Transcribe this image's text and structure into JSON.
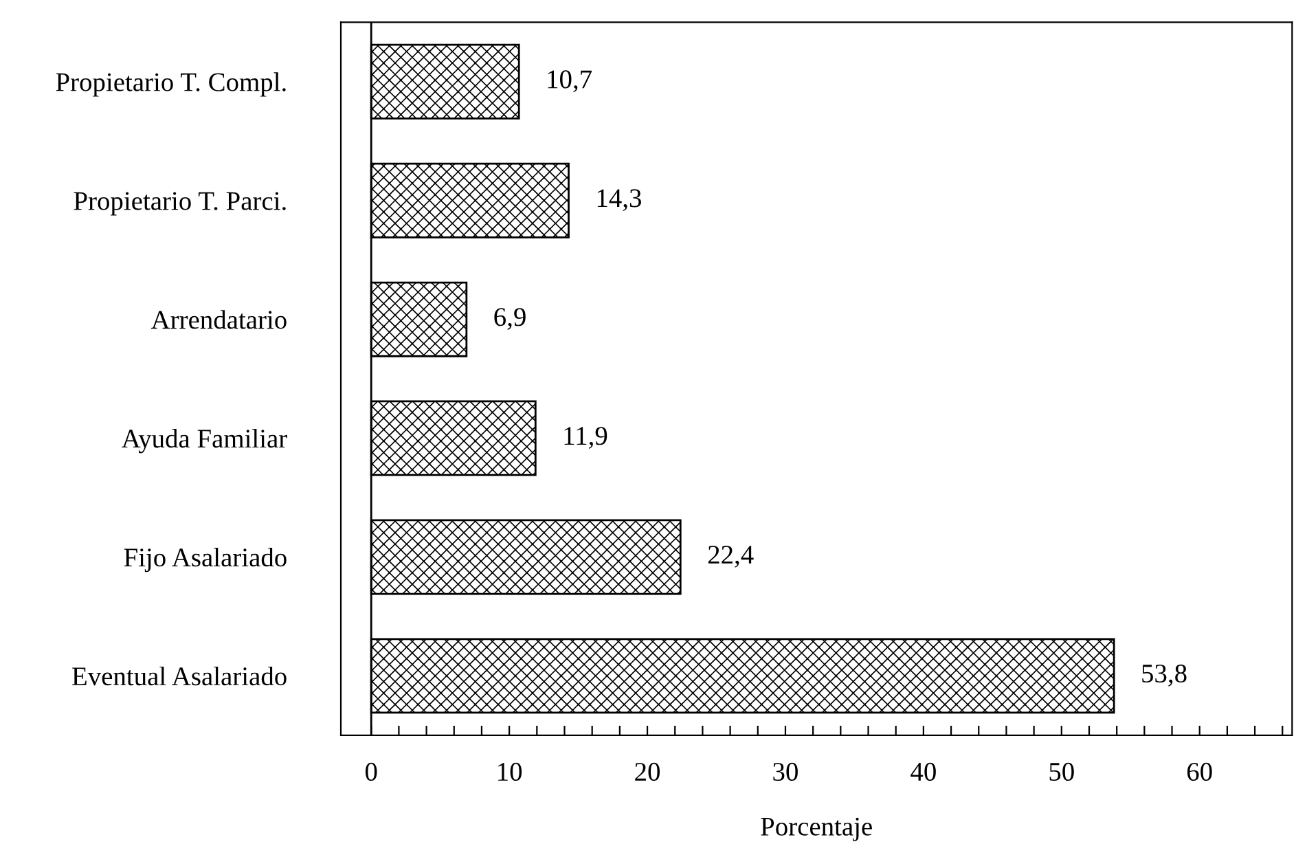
{
  "chart_data": {
    "type": "bar",
    "orientation": "horizontal",
    "xlabel": "Porcentaje",
    "categories": [
      "Propietario T. Compl.",
      "Propietario T. Parci.",
      "Arrendatario",
      "Ayuda Familiar",
      "Fijo Asalariado",
      "Eventual Asalariado"
    ],
    "values": [
      10.7,
      14.3,
      6.9,
      11.9,
      22.4,
      53.8
    ],
    "value_labels": [
      "10,7",
      "14,3",
      "6,9",
      "11,9",
      "22,4",
      "53,8"
    ],
    "color": "#000000",
    "xlim": [
      -2.2,
      66.7
    ],
    "xticks": [
      0,
      {
        "value": 2,
        "label": null
      },
      {
        "value": 4,
        "label": null
      },
      {
        "value": 6,
        "label": null
      },
      {
        "value": 8,
        "label": null
      },
      10,
      {
        "value": 12,
        "label": null
      },
      {
        "value": 14,
        "label": null
      },
      {
        "value": 16,
        "label": null
      },
      {
        "value": 18,
        "label": null
      },
      20,
      {
        "value": 22,
        "label": null
      },
      {
        "value": 24,
        "label": null
      },
      {
        "value": 26,
        "label": null
      },
      {
        "value": 28,
        "label": null
      },
      30,
      {
        "value": 32,
        "label": null
      },
      {
        "value": 34,
        "label": null
      },
      {
        "value": 36,
        "label": null
      },
      {
        "value": 38,
        "label": null
      },
      40,
      {
        "value": 42,
        "label": null
      },
      {
        "value": 44,
        "label": null
      },
      {
        "value": 46,
        "label": null
      },
      {
        "value": 48,
        "label": null
      },
      50,
      {
        "value": 52,
        "label": null
      },
      {
        "value": 54,
        "label": null
      },
      {
        "value": 56,
        "label": null
      },
      {
        "value": 58,
        "label": null
      },
      60,
      {
        "value": 62,
        "label": null
      },
      {
        "value": 64,
        "label": null
      },
      {
        "value": 66,
        "label": null
      }
    ],
    "ref_lines": [
      {
        "axis": "x",
        "value": 0,
        "label": null,
        "color": "#000000"
      }
    ],
    "grid": false
  }
}
